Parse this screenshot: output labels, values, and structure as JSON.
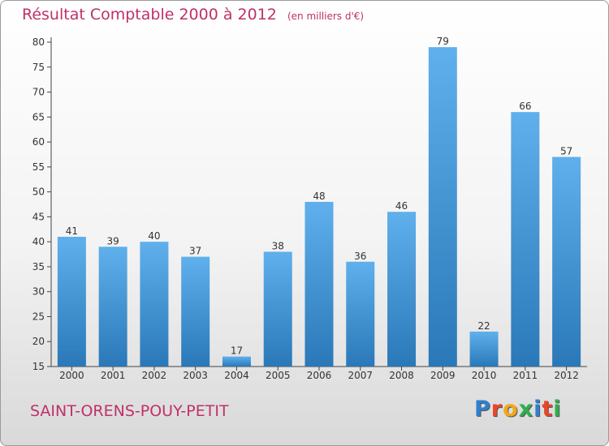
{
  "header": {
    "title": "Résultat Comptable 2000 à 2012",
    "unit": "(en milliers d'€)"
  },
  "footer": {
    "city": "SAINT-ORENS-POUY-PETIT",
    "logo_letters": [
      "P",
      "r",
      "o",
      "x",
      "i",
      "t",
      "i"
    ],
    "logo_colors": [
      "#2f7fd0",
      "#e8462a",
      "#f0a81c",
      "#2fae4e",
      "#2f7fd0",
      "#e8462a",
      "#2fae4e"
    ]
  },
  "colors": {
    "title": "#c0306a",
    "bar_top": "#5fb0ec",
    "bar_bottom": "#2a78b8"
  },
  "chart_data": {
    "type": "bar",
    "title": "Résultat Comptable 2000 à 2012",
    "subtitle": "(en milliers d'€)",
    "xlabel": "",
    "ylabel": "",
    "categories": [
      "2000",
      "2001",
      "2002",
      "2003",
      "2004",
      "2005",
      "2006",
      "2007",
      "2008",
      "2009",
      "2010",
      "2011",
      "2012"
    ],
    "values": [
      41,
      39,
      40,
      37,
      17,
      38,
      48,
      36,
      46,
      79,
      22,
      66,
      57
    ],
    "ylim": [
      15,
      80
    ],
    "yticks": [
      15,
      20,
      25,
      30,
      35,
      40,
      45,
      50,
      55,
      60,
      65,
      70,
      75,
      80
    ],
    "grid": false
  }
}
